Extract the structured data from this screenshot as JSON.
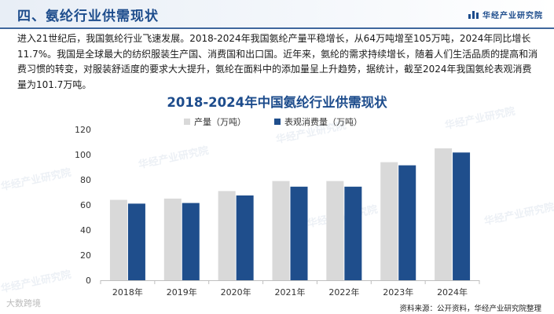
{
  "header": {
    "title": "四、氨纶行业供需现状",
    "brand": "华经产业研究院"
  },
  "intro": "进入21世纪后，我国氨纶行业飞速发展。2018-2024年我国氨纶产量平稳增长，从64万吨增至105万吨，2024年同比增长11.7%。我国是全球最大的纺织服装生产国、消费国和出口国。近年来，氨纶的需求持续增长，随着人们生活品质的提高和消费习惯的转变，对服装舒适度的要求大大提升，氨纶在面料中的添加量呈上升趋势，据统计，截至2024年我国氨纶表观消费量为101.7万吨。",
  "chart_data": {
    "type": "bar",
    "title": "2018-2024年中国氨纶行业供需现状",
    "categories": [
      "2018年",
      "2019年",
      "2020年",
      "2021年",
      "2022年",
      "2023年",
      "2024年"
    ],
    "series": [
      {
        "name": "产量（万吨）",
        "color": "#d9d9d9",
        "values": [
          64,
          65,
          71,
          79,
          79,
          94,
          105
        ]
      },
      {
        "name": "表观消费量（万吨）",
        "color": "#1f4e8c",
        "values": [
          61,
          61.5,
          67.5,
          74.5,
          74.5,
          91.5,
          101.7
        ]
      }
    ],
    "ylim": [
      0,
      120
    ],
    "yticks": [
      0,
      20,
      40,
      60,
      80,
      100,
      120
    ],
    "xlabel": "",
    "ylabel": "",
    "legend_position": "top",
    "grid": false
  },
  "watermark": "华经产业研究院",
  "source": "资料来源：公开资料，华经产业研究院整理",
  "stamp": "大数跨境"
}
